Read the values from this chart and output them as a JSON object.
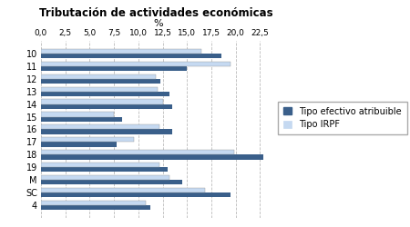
{
  "title": "Tributación de actividades económicas",
  "xlabel": "%",
  "categories": [
    "10",
    "11",
    "12",
    "13",
    "14",
    "15",
    "16",
    "17",
    "18",
    "19",
    "M",
    "SC",
    "4"
  ],
  "tipo_efectivo": [
    18.5,
    15.0,
    12.3,
    13.2,
    13.5,
    8.3,
    13.5,
    7.8,
    22.8,
    13.0,
    14.5,
    19.5,
    11.2
  ],
  "tipo_irpf": [
    16.5,
    19.5,
    11.8,
    12.0,
    12.5,
    7.5,
    12.2,
    9.5,
    19.8,
    12.2,
    13.2,
    16.8,
    10.8
  ],
  "color_efectivo": "#3A5F8A",
  "color_irpf": "#C5D9F1",
  "xlim": [
    0,
    24.0
  ],
  "xticks": [
    0.0,
    2.5,
    5.0,
    7.5,
    10.0,
    12.5,
    15.0,
    17.5,
    20.0,
    22.5
  ],
  "xtick_labels": [
    "0,0",
    "2,5",
    "5,0",
    "7,5",
    "10,0",
    "12,5",
    "15,0",
    "17,5",
    "20,0",
    "22,5"
  ],
  "legend_labels": [
    "Tipo efectivo atribuible",
    "Tipo IRPF"
  ],
  "bar_height": 0.38,
  "grid_color": "#BBBBBB",
  "fig_width": 4.5,
  "fig_height": 2.5,
  "dpi": 100
}
